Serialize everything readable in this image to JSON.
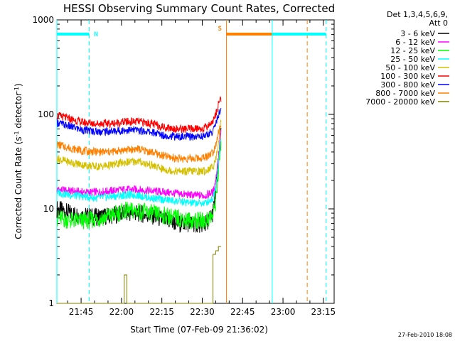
{
  "chart_data": {
    "type": "line",
    "title": "HESSI Observing Summary Count Rates, Corrected",
    "xlabel": "Start Time (07-Feb-09 21:36:02)",
    "ylabel_main": "Corrected Count Rate (s",
    "ylabel_sup1": "-1",
    "ylabel_mid": " detector",
    "ylabel_sup2": "-1",
    "ylabel_end": ")",
    "x_unit": "minutes since 21:36:02",
    "xlim": [
      0,
      103
    ],
    "ylim": [
      1,
      1000
    ],
    "yscale": "log",
    "x_ticks": [
      "21:45",
      "22:00",
      "22:15",
      "22:30",
      "22:45",
      "23:00",
      "23:15"
    ],
    "x_tick_values": [
      9,
      24,
      39,
      54,
      69,
      84,
      99
    ],
    "y_ticks": [
      "1",
      "10",
      "100",
      "1000"
    ],
    "y_tick_values": [
      1,
      10,
      100,
      1000
    ],
    "legend": {
      "header1": "Det 1,3,4,5,6,9,",
      "header2": "Att 0",
      "placement": "right"
    },
    "series": [
      {
        "name": "3 - 6 keV",
        "color": "#000000",
        "x": [
          0,
          5,
          10,
          15,
          20,
          25,
          30,
          35,
          40,
          45,
          50,
          55,
          58,
          59,
          60,
          61
        ],
        "y": [
          10,
          9,
          8.5,
          8.2,
          8.5,
          9,
          9,
          8.5,
          7.5,
          7,
          7,
          6.8,
          9,
          15,
          30,
          60
        ]
      },
      {
        "name": "6 - 12 keV",
        "color": "#ff00ff",
        "x": [
          0,
          5,
          10,
          15,
          20,
          25,
          30,
          35,
          40,
          45,
          50,
          55,
          58,
          59,
          60,
          61
        ],
        "y": [
          16,
          15.5,
          15,
          15,
          15.5,
          16,
          16,
          15.5,
          15,
          14.5,
          14,
          13.8,
          15,
          20,
          35,
          70
        ]
      },
      {
        "name": "12 - 25 keV",
        "color": "#00ff00",
        "x": [
          0,
          5,
          10,
          15,
          20,
          25,
          30,
          35,
          40,
          45,
          50,
          55,
          58,
          59,
          60,
          61
        ],
        "y": [
          8,
          7.5,
          7.5,
          7.8,
          8.5,
          9.5,
          9.5,
          9,
          8.5,
          8,
          7.5,
          7.5,
          8.5,
          12,
          25,
          50
        ]
      },
      {
        "name": "25 - 50 keV",
        "color": "#00ffff",
        "x": [
          0,
          5,
          10,
          15,
          20,
          25,
          30,
          35,
          40,
          45,
          50,
          55,
          58,
          59,
          60,
          61
        ],
        "y": [
          15,
          14,
          13.5,
          13,
          13.5,
          14,
          14,
          13,
          12.5,
          12,
          11.5,
          11.5,
          13,
          17,
          30,
          60
        ]
      },
      {
        "name": "50 - 100 keV",
        "color": "#d4c000",
        "x": [
          0,
          5,
          10,
          15,
          20,
          25,
          30,
          35,
          40,
          45,
          50,
          55,
          58,
          59,
          60,
          61
        ],
        "y": [
          34,
          31,
          29,
          28,
          29,
          31,
          32,
          29,
          26,
          25,
          25,
          25,
          28,
          33,
          50,
          90
        ]
      },
      {
        "name": "100 - 300 keV",
        "color": "#ff0000",
        "x": [
          0,
          5,
          10,
          15,
          20,
          25,
          30,
          35,
          40,
          45,
          50,
          55,
          58,
          59,
          60,
          61
        ],
        "y": [
          98,
          89,
          82,
          80,
          80,
          83,
          84,
          80,
          73,
          70,
          70,
          71,
          85,
          100,
          130,
          150
        ]
      },
      {
        "name": "300 - 800 keV",
        "color": "#0000ff",
        "x": [
          0,
          5,
          10,
          15,
          20,
          25,
          30,
          35,
          40,
          45,
          50,
          55,
          58,
          59,
          60,
          61
        ],
        "y": [
          82,
          74,
          68,
          66,
          66,
          68,
          68,
          65,
          60,
          58,
          58,
          59,
          66,
          80,
          100,
          110
        ]
      },
      {
        "name": "800 - 7000 keV",
        "color": "#ff8000",
        "x": [
          0,
          5,
          10,
          15,
          20,
          25,
          30,
          35,
          40,
          45,
          50,
          55,
          58,
          59,
          60,
          61
        ],
        "y": [
          48,
          44,
          41,
          40,
          40,
          42,
          43,
          40,
          36,
          34,
          34,
          35,
          40,
          48,
          65,
          75
        ]
      },
      {
        "name": "7000 - 20000 keV",
        "color": "#808000",
        "x": [
          0,
          24,
          25,
          25,
          26,
          26,
          58,
          58,
          59,
          59,
          60,
          60,
          61
        ],
        "y": [
          1,
          1,
          1,
          2,
          2,
          1,
          1,
          3.3,
          3.3,
          3.6,
          3.6,
          4,
          4
        ]
      }
    ],
    "markers": [
      {
        "label": "N",
        "color": "#00ffff",
        "x_start": 0,
        "x_end": 12
      },
      {
        "label": "S",
        "color": "#ff8000",
        "x_start": 63,
        "x_end": 93
      },
      {
        "label": "",
        "color": "#00ffff",
        "x_start": 80,
        "x_end": 100
      }
    ],
    "footer": "27-Feb-2010 18:08"
  }
}
